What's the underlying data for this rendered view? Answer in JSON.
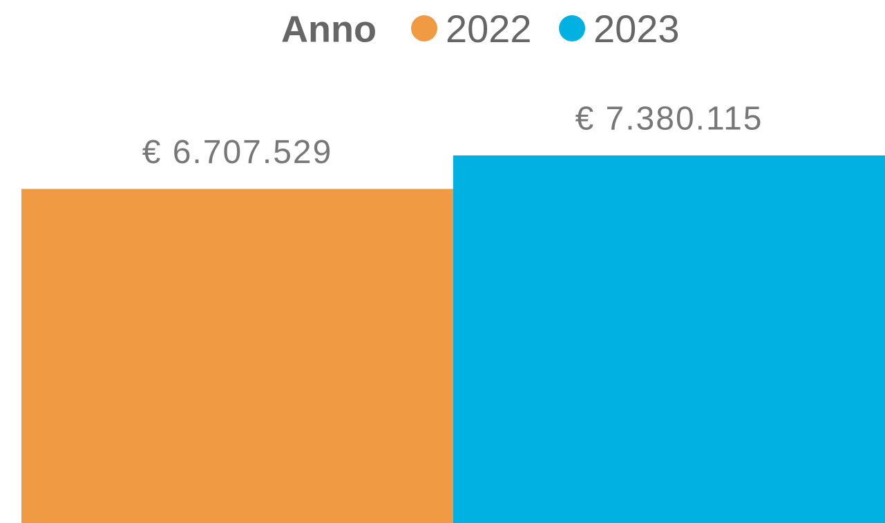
{
  "chart_data": {
    "type": "bar",
    "legend_title": "Anno",
    "categories": [
      null
    ],
    "series": [
      {
        "name": "2022",
        "color": "#F09B43",
        "values": [
          6707529
        ],
        "value_labels": [
          "€ 6.707.529"
        ]
      },
      {
        "name": "2023",
        "color": "#00B1E1",
        "values": [
          7380115
        ],
        "value_labels": [
          "€ 7.380.115"
        ]
      }
    ],
    "ylim": [
      0,
      10500000
    ],
    "legend": "top"
  }
}
